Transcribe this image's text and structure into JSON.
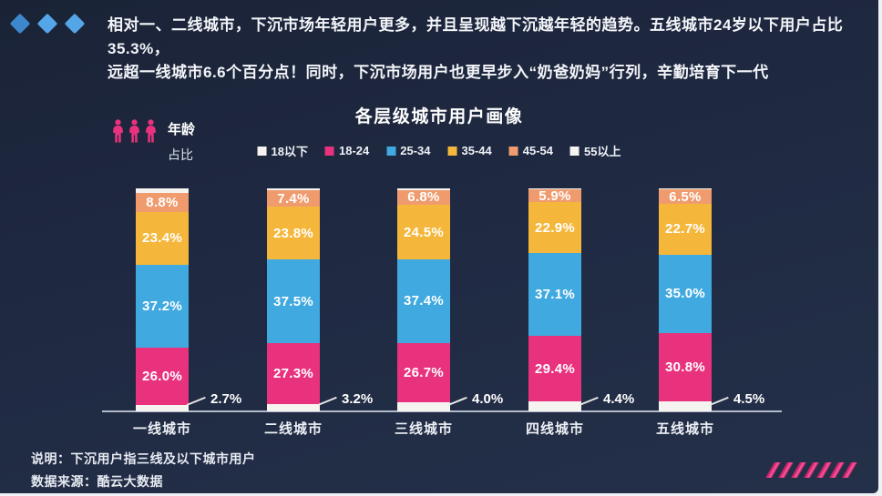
{
  "page": {
    "card_background": "#1f2942",
    "frame_color": "#ffffff"
  },
  "header": {
    "diamond_colors": [
      "#3d87cd",
      "#55a6e8",
      "#55a6e8"
    ],
    "text_line1": "相对一、二线城市，下沉市场年轻用户更多，并且呈现越下沉越年轻的趋势。五线城市24岁以下用户占比35.3%，",
    "text_line2": "远超一线城市6.6个百分点！同时，下沉市场用户也更早步入“奶爸奶妈”行列，辛勤培育下一代"
  },
  "chart": {
    "title": "各层级城市用户画像",
    "y_axis_label": {
      "line1": "年龄",
      "line2": "占比"
    },
    "people_icon_color": "#e8327e"
  },
  "chart_data": {
    "type": "bar",
    "stacked": true,
    "title": "各层级城市用户画像",
    "categories": [
      "一线城市",
      "二线城市",
      "三线城市",
      "四线城市",
      "五线城市"
    ],
    "series": [
      {
        "name": "18以下",
        "color": "#f5f4f1",
        "values": [
          2.7,
          3.2,
          4.0,
          4.4,
          4.5
        ],
        "labels": "outside-right"
      },
      {
        "name": "18-24",
        "color": "#e8327e",
        "values": [
          26.0,
          27.3,
          26.7,
          29.4,
          30.8
        ],
        "labels": "inside"
      },
      {
        "name": "25-34",
        "color": "#3fa9e0",
        "values": [
          37.2,
          37.5,
          37.4,
          37.1,
          35.0
        ],
        "labels": "inside"
      },
      {
        "name": "35-44",
        "color": "#f5b73b",
        "values": [
          23.4,
          23.8,
          24.5,
          22.9,
          22.7
        ],
        "labels": "inside"
      },
      {
        "name": "45-54",
        "color": "#f09b6e",
        "values": [
          8.8,
          7.4,
          6.8,
          5.9,
          6.5
        ],
        "labels": "inside"
      }
    ],
    "top_cap": {
      "name": "55以上",
      "color": "#f5f4f1",
      "note": "unlabeled remainder to 100%"
    },
    "ylim": [
      0,
      100
    ],
    "grid": false,
    "legend_position": "top"
  },
  "footer": {
    "note": "说明：下沉用户指三线及以下城市用户",
    "source": "数据来源：酷云大数据",
    "slashes_color": "#e8327e",
    "slashes_count": 7
  }
}
